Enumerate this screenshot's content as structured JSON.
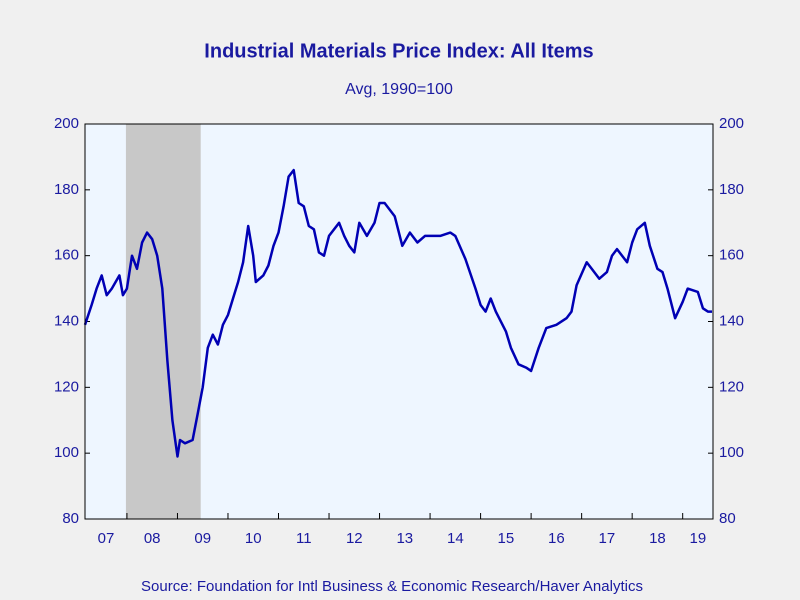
{
  "chart_data": {
    "type": "line",
    "title": "Industrial Materials Price Index: All Items",
    "subtitle": "Avg, 1990=100",
    "source": "Source:  Foundation for Intl Business & Economic Research/Haver Analytics",
    "x": [
      2007.17,
      2007.3,
      2007.4,
      2007.5,
      2007.6,
      2007.7,
      2007.85,
      2007.92,
      2008.0,
      2008.1,
      2008.2,
      2008.3,
      2008.4,
      2008.5,
      2008.6,
      2008.7,
      2008.8,
      2008.9,
      2009.0,
      2009.05,
      2009.15,
      2009.3,
      2009.4,
      2009.5,
      2009.6,
      2009.7,
      2009.8,
      2009.9,
      2010.0,
      2010.1,
      2010.2,
      2010.3,
      2010.4,
      2010.5,
      2010.55,
      2010.7,
      2010.8,
      2010.9,
      2011.0,
      2011.1,
      2011.2,
      2011.3,
      2011.4,
      2011.5,
      2011.6,
      2011.7,
      2011.8,
      2011.9,
      2012.0,
      2012.2,
      2012.3,
      2012.4,
      2012.5,
      2012.6,
      2012.75,
      2012.9,
      2013.0,
      2013.1,
      2013.3,
      2013.45,
      2013.6,
      2013.75,
      2013.9,
      2014.0,
      2014.2,
      2014.4,
      2014.5,
      2014.7,
      2014.9,
      2015.0,
      2015.1,
      2015.2,
      2015.3,
      2015.5,
      2015.6,
      2015.75,
      2015.9,
      2016.0,
      2016.15,
      2016.3,
      2016.5,
      2016.7,
      2016.8,
      2016.9,
      2017.1,
      2017.2,
      2017.35,
      2017.5,
      2017.6,
      2017.7,
      2017.9,
      2018.0,
      2018.1,
      2018.25,
      2018.35,
      2018.5,
      2018.6,
      2018.7,
      2018.85,
      2019.0,
      2019.1,
      2019.3,
      2019.4,
      2019.5,
      2019.58
    ],
    "series": [
      {
        "name": "Industrial Materials Price Index",
        "color": "#0000b4",
        "values": [
          139,
          145,
          150,
          154,
          148,
          150,
          154,
          148,
          150,
          160,
          156,
          164,
          167,
          165,
          160,
          150,
          128,
          110,
          99,
          104,
          103,
          104,
          112,
          120,
          132,
          136,
          133,
          139,
          142,
          147,
          152,
          158,
          169,
          160,
          152,
          154,
          157,
          163,
          167,
          175,
          184,
          186,
          176,
          175,
          169,
          168,
          161,
          160,
          166,
          170,
          166,
          163,
          161,
          170,
          166,
          170,
          176,
          176,
          172,
          163,
          167,
          164,
          166,
          166,
          166,
          167,
          166,
          159,
          150,
          145,
          143,
          147,
          143,
          137,
          132,
          127,
          126,
          125,
          132,
          138,
          139,
          141,
          143,
          151,
          158,
          156,
          153,
          155,
          160,
          162,
          158,
          164,
          168,
          170,
          163,
          156,
          155,
          150,
          141,
          146,
          150,
          149,
          144,
          143,
          143
        ]
      }
    ],
    "shade": [
      2007.98,
      2009.46
    ],
    "xlim": [
      2007.17,
      2019.6
    ],
    "xticks": [
      {
        "value": 2007,
        "label": "07"
      },
      {
        "value": 2008,
        "label": "08"
      },
      {
        "value": 2009,
        "label": "09"
      },
      {
        "value": 2010,
        "label": "10"
      },
      {
        "value": 2011,
        "label": "11"
      },
      {
        "value": 2012,
        "label": "12"
      },
      {
        "value": 2013,
        "label": "13"
      },
      {
        "value": 2014,
        "label": "14"
      },
      {
        "value": 2015,
        "label": "15"
      },
      {
        "value": 2016,
        "label": "16"
      },
      {
        "value": 2017,
        "label": "17"
      },
      {
        "value": 2018,
        "label": "18"
      },
      {
        "value": 2019,
        "label": "19"
      }
    ],
    "ylim": [
      80,
      200
    ],
    "yticks": [
      80,
      100,
      120,
      140,
      160,
      180,
      200
    ],
    "y2lim": [
      80,
      200
    ],
    "y2ticks": [
      80,
      100,
      120,
      140,
      160,
      180,
      200
    ]
  }
}
